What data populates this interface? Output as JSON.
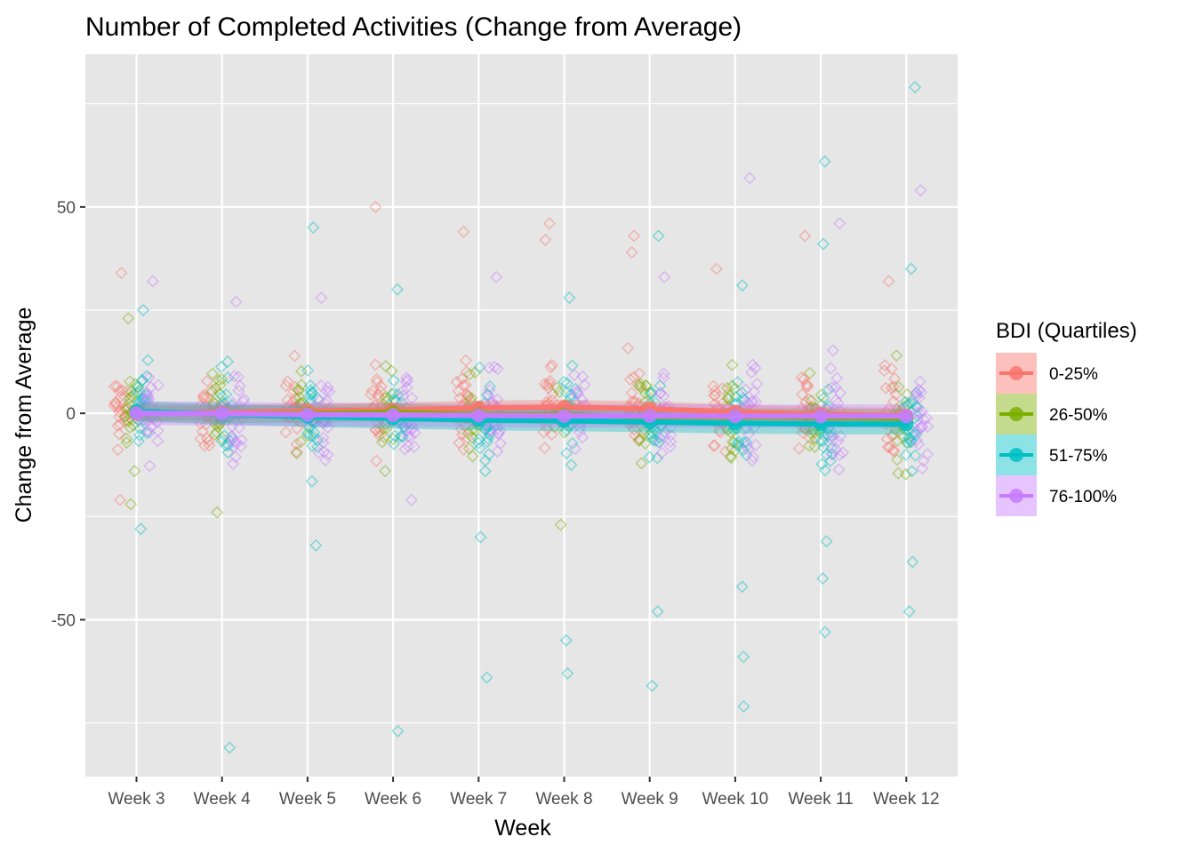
{
  "chart_data": {
    "type": "line",
    "title": "Number of Completed Activities (Change from Average)",
    "xlabel": "Week",
    "ylabel": "Change from Average",
    "categories": [
      "Week 3",
      "Week 4",
      "Week 5",
      "Week 6",
      "Week 7",
      "Week 8",
      "Week 9",
      "Week 10",
      "Week 11",
      "Week 12"
    ],
    "ylim": [
      -88,
      87
    ],
    "yticks": [
      -50,
      0,
      50
    ],
    "grid": true,
    "legend": {
      "title": "BDI (Quartiles)",
      "position": "right",
      "entries": [
        "0-25%",
        "26-50%",
        "51-75%",
        "76-100%"
      ]
    },
    "colors": {
      "panel": "#e6e6e6",
      "grid": "#ffffff",
      "0-25%": "#F8766D",
      "26-50%": "#7CAE00",
      "51-75%": "#00BFC4",
      "76-100%": "#C77CFF"
    },
    "series": [
      {
        "name": "0-25%",
        "values": [
          0.0,
          0.2,
          0.6,
          0.8,
          1.3,
          1.5,
          1.1,
          0.3,
          -0.2,
          -0.6
        ]
      },
      {
        "name": "26-50%",
        "values": [
          0.3,
          -0.2,
          -0.1,
          0.2,
          -0.3,
          -0.4,
          -0.8,
          -0.9,
          -1.0,
          -1.2
        ]
      },
      {
        "name": "51-75%",
        "values": [
          0.5,
          -0.2,
          -0.8,
          -1.2,
          -1.6,
          -1.8,
          -2.1,
          -2.4,
          -2.6,
          -2.6
        ]
      },
      {
        "name": "76-100%",
        "values": [
          0.0,
          -0.1,
          -0.3,
          -0.4,
          -0.5,
          -0.6,
          -0.6,
          -0.7,
          -0.7,
          -0.7
        ]
      }
    ],
    "outliers": [
      {
        "group": "0-25%",
        "week": "Week 3",
        "value": 34
      },
      {
        "group": "0-25%",
        "week": "Week 3",
        "value": -21
      },
      {
        "group": "26-50%",
        "week": "Week 3",
        "value": 23
      },
      {
        "group": "26-50%",
        "week": "Week 3",
        "value": -22
      },
      {
        "group": "51-75%",
        "week": "Week 3",
        "value": 25
      },
      {
        "group": "51-75%",
        "week": "Week 3",
        "value": -28
      },
      {
        "group": "76-100%",
        "week": "Week 3",
        "value": 32
      },
      {
        "group": "51-75%",
        "week": "Week 4",
        "value": -81
      },
      {
        "group": "26-50%",
        "week": "Week 4",
        "value": -24
      },
      {
        "group": "76-100%",
        "week": "Week 4",
        "value": 27
      },
      {
        "group": "51-75%",
        "week": "Week 5",
        "value": 45
      },
      {
        "group": "51-75%",
        "week": "Week 5",
        "value": -32
      },
      {
        "group": "76-100%",
        "week": "Week 5",
        "value": 28
      },
      {
        "group": "0-25%",
        "week": "Week 6",
        "value": 50
      },
      {
        "group": "51-75%",
        "week": "Week 6",
        "value": 30
      },
      {
        "group": "51-75%",
        "week": "Week 6",
        "value": -77
      },
      {
        "group": "76-100%",
        "week": "Week 6",
        "value": -21
      },
      {
        "group": "0-25%",
        "week": "Week 7",
        "value": 44
      },
      {
        "group": "51-75%",
        "week": "Week 7",
        "value": -30
      },
      {
        "group": "51-75%",
        "week": "Week 7",
        "value": -64
      },
      {
        "group": "76-100%",
        "week": "Week 7",
        "value": 33
      },
      {
        "group": "0-25%",
        "week": "Week 8",
        "value": 46
      },
      {
        "group": "0-25%",
        "week": "Week 8",
        "value": 42
      },
      {
        "group": "26-50%",
        "week": "Week 8",
        "value": -27
      },
      {
        "group": "51-75%",
        "week": "Week 8",
        "value": -55
      },
      {
        "group": "51-75%",
        "week": "Week 8",
        "value": -63
      },
      {
        "group": "51-75%",
        "week": "Week 8",
        "value": 28
      },
      {
        "group": "0-25%",
        "week": "Week 9",
        "value": 43
      },
      {
        "group": "0-25%",
        "week": "Week 9",
        "value": 39
      },
      {
        "group": "51-75%",
        "week": "Week 9",
        "value": 43
      },
      {
        "group": "51-75%",
        "week": "Week 9",
        "value": -48
      },
      {
        "group": "51-75%",
        "week": "Week 9",
        "value": -66
      },
      {
        "group": "76-100%",
        "week": "Week 9",
        "value": 33
      },
      {
        "group": "0-25%",
        "week": "Week 10",
        "value": 35
      },
      {
        "group": "51-75%",
        "week": "Week 10",
        "value": 31
      },
      {
        "group": "51-75%",
        "week": "Week 10",
        "value": -42
      },
      {
        "group": "51-75%",
        "week": "Week 10",
        "value": -59
      },
      {
        "group": "51-75%",
        "week": "Week 10",
        "value": -71
      },
      {
        "group": "76-100%",
        "week": "Week 10",
        "value": 57
      },
      {
        "group": "0-25%",
        "week": "Week 11",
        "value": 43
      },
      {
        "group": "51-75%",
        "week": "Week 11",
        "value": 61
      },
      {
        "group": "51-75%",
        "week": "Week 11",
        "value": 41
      },
      {
        "group": "51-75%",
        "week": "Week 11",
        "value": -31
      },
      {
        "group": "51-75%",
        "week": "Week 11",
        "value": -40
      },
      {
        "group": "51-75%",
        "week": "Week 11",
        "value": -53
      },
      {
        "group": "76-100%",
        "week": "Week 11",
        "value": 46
      },
      {
        "group": "0-25%",
        "week": "Week 12",
        "value": 32
      },
      {
        "group": "51-75%",
        "week": "Week 12",
        "value": 79
      },
      {
        "group": "51-75%",
        "week": "Week 12",
        "value": 35
      },
      {
        "group": "51-75%",
        "week": "Week 12",
        "value": -36
      },
      {
        "group": "51-75%",
        "week": "Week 12",
        "value": -48
      },
      {
        "group": "76-100%",
        "week": "Week 12",
        "value": 54
      }
    ]
  }
}
